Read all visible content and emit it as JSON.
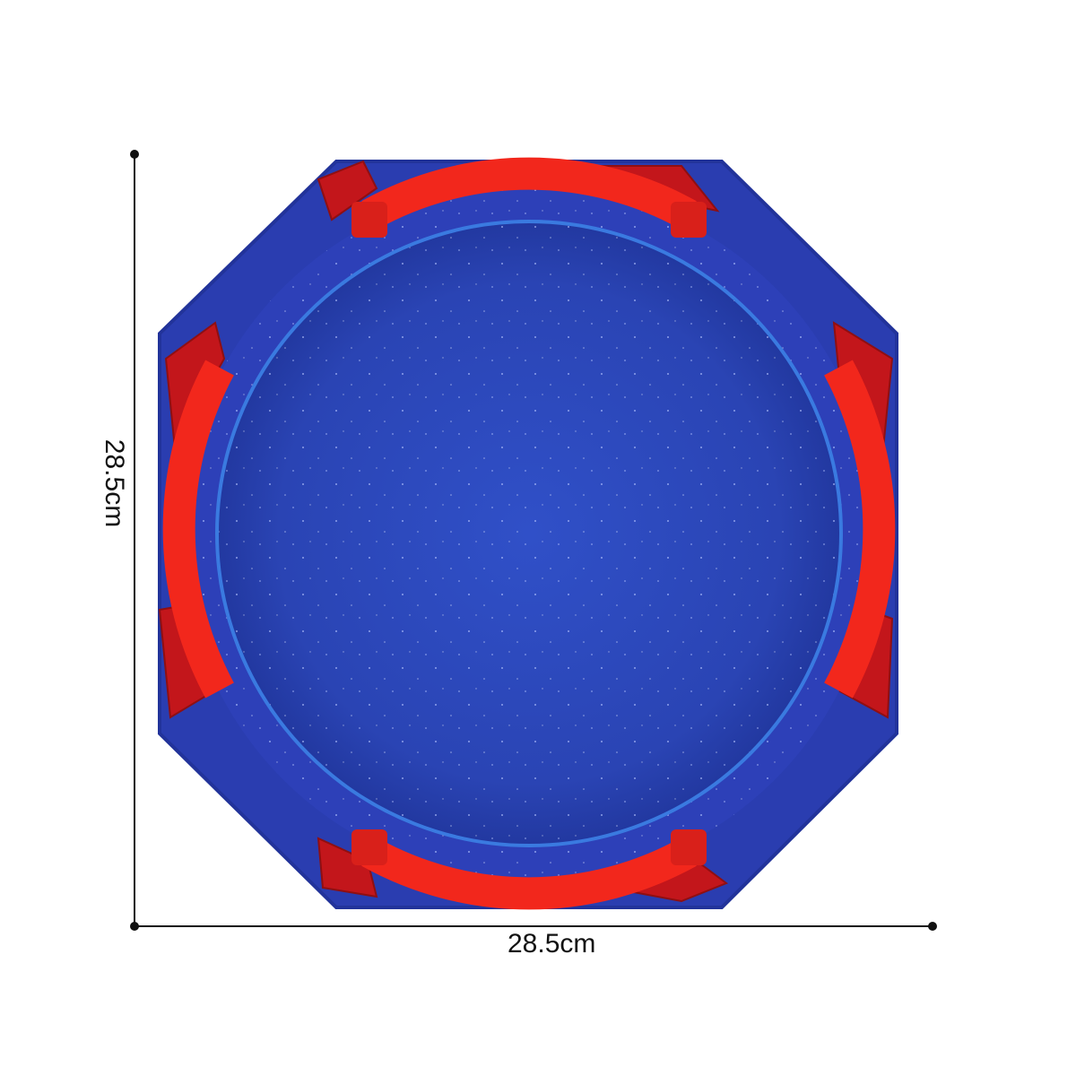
{
  "dimensions": {
    "height_label": "28.5cm",
    "width_label": "28.5cm"
  },
  "colors": {
    "arena_blue": "#2b3fae",
    "rim_blue": "#2a3fb8",
    "bumper_red": "#f2271c",
    "corner_red": "#c8141a",
    "line": "#111111"
  }
}
